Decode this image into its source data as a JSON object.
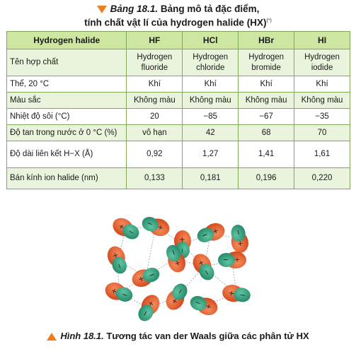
{
  "caption_top": {
    "label": "Bảng 18.1.",
    "text1": "Bảng mô tả đặc điểm,",
    "text2": "tính chất vật lí của hydrogen halide (HX)",
    "note": "(*)"
  },
  "table": {
    "headers": [
      "Hydrogen halide",
      "HF",
      "HCl",
      "HBr",
      "HI"
    ],
    "rows": [
      {
        "label": "Tên hợp chất",
        "values": [
          "Hydrogen fluoride",
          "Hydrogen chloride",
          "Hydrogen bromide",
          "Hydrogen iodide"
        ]
      },
      {
        "label": "Thể, 20 °C",
        "values": [
          "Khí",
          "Khí",
          "Khí",
          "Khí"
        ]
      },
      {
        "label": "Màu sắc",
        "values": [
          "Không màu",
          "Không màu",
          "Không màu",
          "Không màu"
        ]
      },
      {
        "label": "Nhiệt độ sôi (°C)",
        "values": [
          "20",
          "−85",
          "−67",
          "−35"
        ]
      },
      {
        "label": "Độ tan trong nước ở 0 °C (%)",
        "values": [
          "vô hạn",
          "42",
          "68",
          "70"
        ]
      },
      {
        "label": "Độ dài liên kết H−X (Å)",
        "values": [
          "0,92",
          "1,27",
          "1,41",
          "1,61"
        ]
      },
      {
        "label": "Bán kính ion halide (nm)",
        "values": [
          "0,133",
          "0,181",
          "0,196",
          "0,220"
        ]
      }
    ]
  },
  "caption_bottom": {
    "label": "Hình 18.1.",
    "text": "Tương tác van der Waals giữa các phân tử HX"
  },
  "colors": {
    "accent": "#f07d1c",
    "header_bg": "#cde6a1",
    "border": "#7fa957",
    "stripe": "#eaf4dc",
    "molecule_red": "#e4542a",
    "molecule_green": "#33a582"
  }
}
